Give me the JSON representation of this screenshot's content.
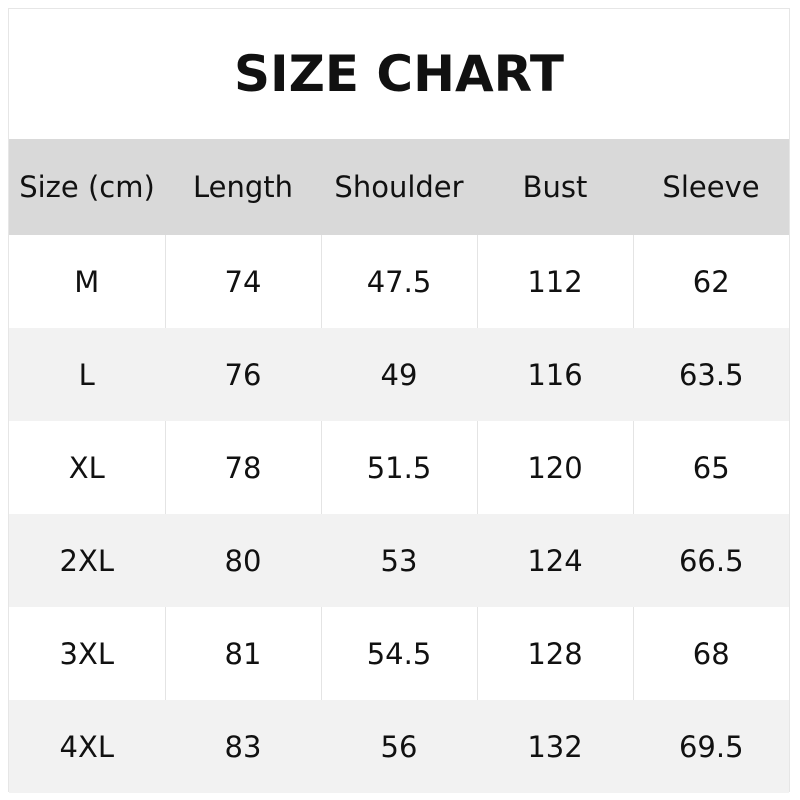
{
  "title": "SIZE CHART",
  "headers": [
    "Size (cm)",
    "Length",
    "Shoulder",
    "Bust",
    "Sleeve"
  ],
  "rows": [
    [
      "M",
      "74",
      "47.5",
      "112",
      "62"
    ],
    [
      "L",
      "76",
      "49",
      "116",
      "63.5"
    ],
    [
      "XL",
      "78",
      "51.5",
      "120",
      "65"
    ],
    [
      "2XL",
      "80",
      "53",
      "124",
      "66.5"
    ],
    [
      "3XL",
      "81",
      "54.5",
      "128",
      "68"
    ],
    [
      "4XL",
      "83",
      "56",
      "132",
      "69.5"
    ]
  ],
  "colors": {
    "header_bg": "#d9d9d9",
    "alt_row_bg": "#f2f2f2"
  }
}
